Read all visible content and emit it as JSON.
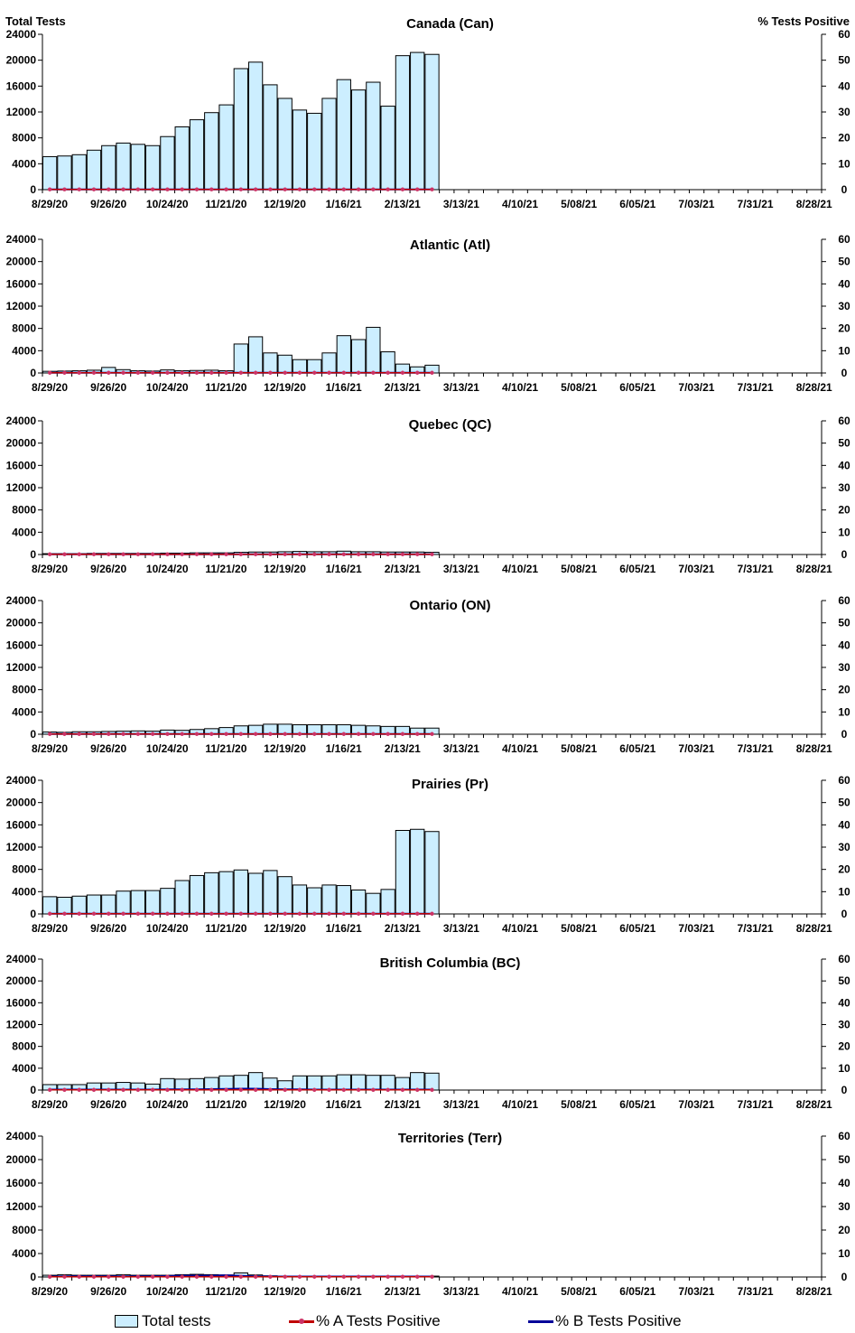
{
  "left_axis_title": "Total Tests",
  "right_axis_title": "% Tests Positive",
  "x_tick_labels": [
    "8/29/20",
    "9/26/20",
    "10/24/20",
    "11/21/20",
    "12/19/20",
    "1/16/21",
    "2/13/21",
    "3/13/21",
    "4/10/21",
    "5/08/21",
    "6/05/21",
    "7/03/21",
    "7/31/21",
    "8/28/21"
  ],
  "legend": {
    "total_tests": "Total tests",
    "pct_a": "% A Tests Positive",
    "pct_b": "% B Tests Positive"
  },
  "colors": {
    "bar_fill": "#cceeff",
    "bar_stroke": "#000000",
    "pct_a": "#c00000",
    "pct_a_marker": "#cc3366",
    "pct_b": "#000099"
  },
  "chart_data": [
    {
      "type": "bar",
      "title": "Canada (Can)",
      "ylim": [
        0,
        24000
      ],
      "y2lim": [
        0,
        60
      ],
      "yticks": [
        0,
        4000,
        8000,
        12000,
        16000,
        20000,
        24000
      ],
      "y2ticks": [
        0,
        10,
        20,
        30,
        40,
        50,
        60
      ],
      "total_tests": [
        5100,
        5200,
        5400,
        6100,
        6800,
        7200,
        7000,
        6800,
        8200,
        9700,
        10800,
        11900,
        13100,
        18700,
        19700,
        16200,
        14100,
        12300,
        11800,
        14100,
        17000,
        15400,
        16600,
        12900,
        20700,
        21200,
        20900
      ],
      "pct_a": [
        0.1,
        0.1,
        0.1,
        0.1,
        0.1,
        0.1,
        0.1,
        0.1,
        0.1,
        0.1,
        0.1,
        0.1,
        0.1,
        0.1,
        0.1,
        0.1,
        0.1,
        0.1,
        0.1,
        0.1,
        0.1,
        0.1,
        0.1,
        0.1,
        0.1,
        0.1,
        0.1
      ],
      "pct_b": [
        0.1,
        0.1,
        0.1,
        0.1,
        0.1,
        0.1,
        0.1,
        0.1,
        0.1,
        0.1,
        0.1,
        0.1,
        0.1,
        0.1,
        0.1,
        0.1,
        0.1,
        0.1,
        0.1,
        0.1,
        0.1,
        0.1,
        0.1,
        0.1,
        0.1,
        0.1,
        0.1
      ]
    },
    {
      "type": "bar",
      "title": "Atlantic (Atl)",
      "ylim": [
        0,
        24000
      ],
      "y2lim": [
        0,
        60
      ],
      "yticks": [
        0,
        4000,
        8000,
        12000,
        16000,
        20000,
        24000
      ],
      "y2ticks": [
        0,
        10,
        20,
        30,
        40,
        50,
        60
      ],
      "total_tests": [
        300,
        350,
        400,
        500,
        1000,
        600,
        400,
        350,
        550,
        400,
        450,
        500,
        400,
        5200,
        6500,
        3600,
        3200,
        2400,
        2400,
        3600,
        6700,
        6000,
        8200,
        3800,
        1600,
        1100,
        1400
      ],
      "pct_a": [
        0.1,
        0.1,
        0.1,
        0.1,
        0.1,
        0.1,
        0.1,
        0.1,
        0.1,
        0.1,
        0.1,
        0.1,
        0.1,
        0.1,
        0.1,
        0.1,
        0.1,
        0.1,
        0.1,
        0.1,
        0.1,
        0.1,
        0.1,
        0.1,
        0.1,
        0.1,
        0.1
      ],
      "pct_b": [
        0.1,
        0.1,
        0.1,
        0.1,
        0.1,
        0.1,
        0.1,
        0.1,
        0.1,
        0.1,
        0.1,
        0.1,
        0.1,
        0.1,
        0.1,
        0.1,
        0.1,
        0.1,
        0.1,
        0.1,
        0.1,
        0.1,
        0.1,
        0.1,
        0.1,
        0.1,
        0.1
      ]
    },
    {
      "type": "bar",
      "title": "Quebec (QC)",
      "ylim": [
        0,
        24000
      ],
      "y2lim": [
        0,
        60
      ],
      "yticks": [
        0,
        4000,
        8000,
        12000,
        16000,
        20000,
        24000
      ],
      "y2ticks": [
        0,
        10,
        20,
        30,
        40,
        50,
        60
      ],
      "total_tests": [
        150,
        150,
        150,
        200,
        200,
        200,
        200,
        200,
        250,
        250,
        300,
        300,
        300,
        400,
        450,
        450,
        500,
        550,
        500,
        500,
        600,
        500,
        500,
        450,
        450,
        450,
        400
      ],
      "pct_a": [
        0.1,
        0.1,
        0.1,
        0.1,
        0.1,
        0.1,
        0.1,
        0.1,
        0.1,
        0.1,
        0.1,
        0.1,
        0.1,
        0.1,
        0.1,
        0.1,
        0.1,
        0.1,
        0.1,
        0.1,
        0.1,
        0.1,
        0.1,
        0.1,
        0.1,
        0.1,
        0.1
      ],
      "pct_b": [
        0.1,
        0.1,
        0.1,
        0.1,
        0.1,
        0.1,
        0.1,
        0.1,
        0.1,
        0.1,
        0.1,
        0.1,
        0.1,
        0.1,
        0.1,
        0.1,
        0.1,
        0.1,
        0.1,
        0.1,
        0.1,
        0.1,
        0.1,
        0.1,
        0.1,
        0.1,
        0.1
      ]
    },
    {
      "type": "bar",
      "title": "Ontario (ON)",
      "ylim": [
        0,
        24000
      ],
      "y2lim": [
        0,
        60
      ],
      "yticks": [
        0,
        4000,
        8000,
        12000,
        16000,
        20000,
        24000
      ],
      "y2ticks": [
        0,
        10,
        20,
        30,
        40,
        50,
        60
      ],
      "total_tests": [
        400,
        350,
        450,
        450,
        500,
        550,
        600,
        550,
        750,
        700,
        850,
        1000,
        1200,
        1500,
        1600,
        1800,
        1800,
        1700,
        1700,
        1700,
        1700,
        1600,
        1500,
        1400,
        1400,
        1100,
        1100
      ],
      "pct_a": [
        0.1,
        0.1,
        0.1,
        0.1,
        0.1,
        0.1,
        0.1,
        0.1,
        0.1,
        0.1,
        0.1,
        0.1,
        0.1,
        0.1,
        0.1,
        0.1,
        0.1,
        0.1,
        0.1,
        0.1,
        0.1,
        0.1,
        0.1,
        0.1,
        0.1,
        0.1,
        0.1
      ],
      "pct_b": [
        0.1,
        0.1,
        0.1,
        0.1,
        0.1,
        0.1,
        0.1,
        0.1,
        0.1,
        0.1,
        0.1,
        0.1,
        0.1,
        0.1,
        0.1,
        0.1,
        0.1,
        0.1,
        0.1,
        0.1,
        0.1,
        0.1,
        0.1,
        0.1,
        0.1,
        0.1,
        0.1
      ]
    },
    {
      "type": "bar",
      "title": "Prairies (Pr)",
      "ylim": [
        0,
        24000
      ],
      "y2lim": [
        0,
        60
      ],
      "yticks": [
        0,
        4000,
        8000,
        12000,
        16000,
        20000,
        24000
      ],
      "y2ticks": [
        0,
        10,
        20,
        30,
        40,
        50,
        60
      ],
      "total_tests": [
        3100,
        3000,
        3200,
        3400,
        3400,
        4100,
        4200,
        4200,
        4600,
        6000,
        6900,
        7400,
        7600,
        7900,
        7300,
        7800,
        6700,
        5200,
        4700,
        5200,
        5100,
        4300,
        3700,
        4400,
        15000,
        15200,
        14800
      ],
      "pct_a": [
        0.1,
        0.1,
        0.1,
        0.1,
        0.1,
        0.1,
        0.1,
        0.1,
        0.1,
        0.1,
        0.1,
        0.1,
        0.1,
        0.1,
        0.1,
        0.1,
        0.1,
        0.1,
        0.1,
        0.1,
        0.1,
        0.1,
        0.1,
        0.1,
        0.1,
        0.1,
        0.1
      ],
      "pct_b": [
        0.1,
        0.1,
        0.1,
        0.1,
        0.1,
        0.1,
        0.1,
        0.1,
        0.1,
        0.1,
        0.1,
        0.1,
        0.1,
        0.1,
        0.1,
        0.1,
        0.1,
        0.1,
        0.1,
        0.1,
        0.1,
        0.1,
        0.1,
        0.1,
        0.1,
        0.1,
        0.1
      ]
    },
    {
      "type": "bar",
      "title": "British Columbia (BC)",
      "ylim": [
        0,
        24000
      ],
      "y2lim": [
        0,
        60
      ],
      "yticks": [
        0,
        4000,
        8000,
        12000,
        16000,
        20000,
        24000
      ],
      "y2ticks": [
        0,
        10,
        20,
        30,
        40,
        50,
        60
      ],
      "total_tests": [
        1000,
        1000,
        1000,
        1300,
        1300,
        1400,
        1300,
        1100,
        2100,
        2000,
        2100,
        2300,
        2600,
        2700,
        3200,
        2200,
        1700,
        2600,
        2600,
        2600,
        2800,
        2800,
        2700,
        2700,
        2300,
        3200,
        3100
      ],
      "pct_a": [
        0.1,
        0.1,
        0.1,
        0.1,
        0.1,
        0.1,
        0.1,
        0.1,
        0.1,
        0.1,
        0.1,
        0.1,
        0.1,
        0.1,
        0.1,
        0.1,
        0.1,
        0.1,
        0.1,
        0.1,
        0.1,
        0.1,
        0.1,
        0.1,
        0.1,
        0.1,
        0.1
      ],
      "pct_b": [
        0.2,
        0.2,
        0.2,
        0.2,
        0.2,
        0.2,
        0.2,
        0.2,
        0.3,
        0.3,
        0.3,
        0.4,
        0.5,
        0.6,
        0.6,
        0.4,
        0.3,
        0.3,
        0.2,
        0.2,
        0.2,
        0.2,
        0.2,
        0.2,
        0.2,
        0.2,
        0.2
      ]
    },
    {
      "type": "bar",
      "title": "Territories (Terr)",
      "ylim": [
        0,
        24000
      ],
      "y2lim": [
        0,
        60
      ],
      "yticks": [
        0,
        4000,
        8000,
        12000,
        16000,
        20000,
        24000
      ],
      "y2ticks": [
        0,
        10,
        20,
        30,
        40,
        50,
        60
      ],
      "total_tests": [
        300,
        400,
        300,
        300,
        300,
        400,
        300,
        300,
        300,
        400,
        450,
        400,
        350,
        700,
        350,
        200,
        150,
        150,
        150,
        150,
        150,
        150,
        150,
        150,
        150,
        150,
        150
      ],
      "pct_a": [
        0.1,
        0.1,
        0.1,
        0.1,
        0.1,
        0.1,
        0.1,
        0.1,
        0.1,
        0.1,
        0.1,
        0.1,
        0.1,
        0.1,
        0.1,
        0.1,
        0.1,
        0.1,
        0.1,
        0.1,
        0.1,
        0.1,
        0.1,
        0.1,
        0.1,
        0.1,
        0.1
      ],
      "pct_b": [
        0.2,
        0.3,
        0.3,
        0.3,
        0.3,
        0.3,
        0.3,
        0.3,
        0.4,
        0.6,
        0.6,
        0.6,
        0.7,
        0.5,
        0.3,
        0.2,
        0.2,
        0.2,
        0.2,
        0.2,
        0.2,
        0.2,
        0.2,
        0.2,
        0.2,
        0.2,
        0.2
      ]
    }
  ]
}
